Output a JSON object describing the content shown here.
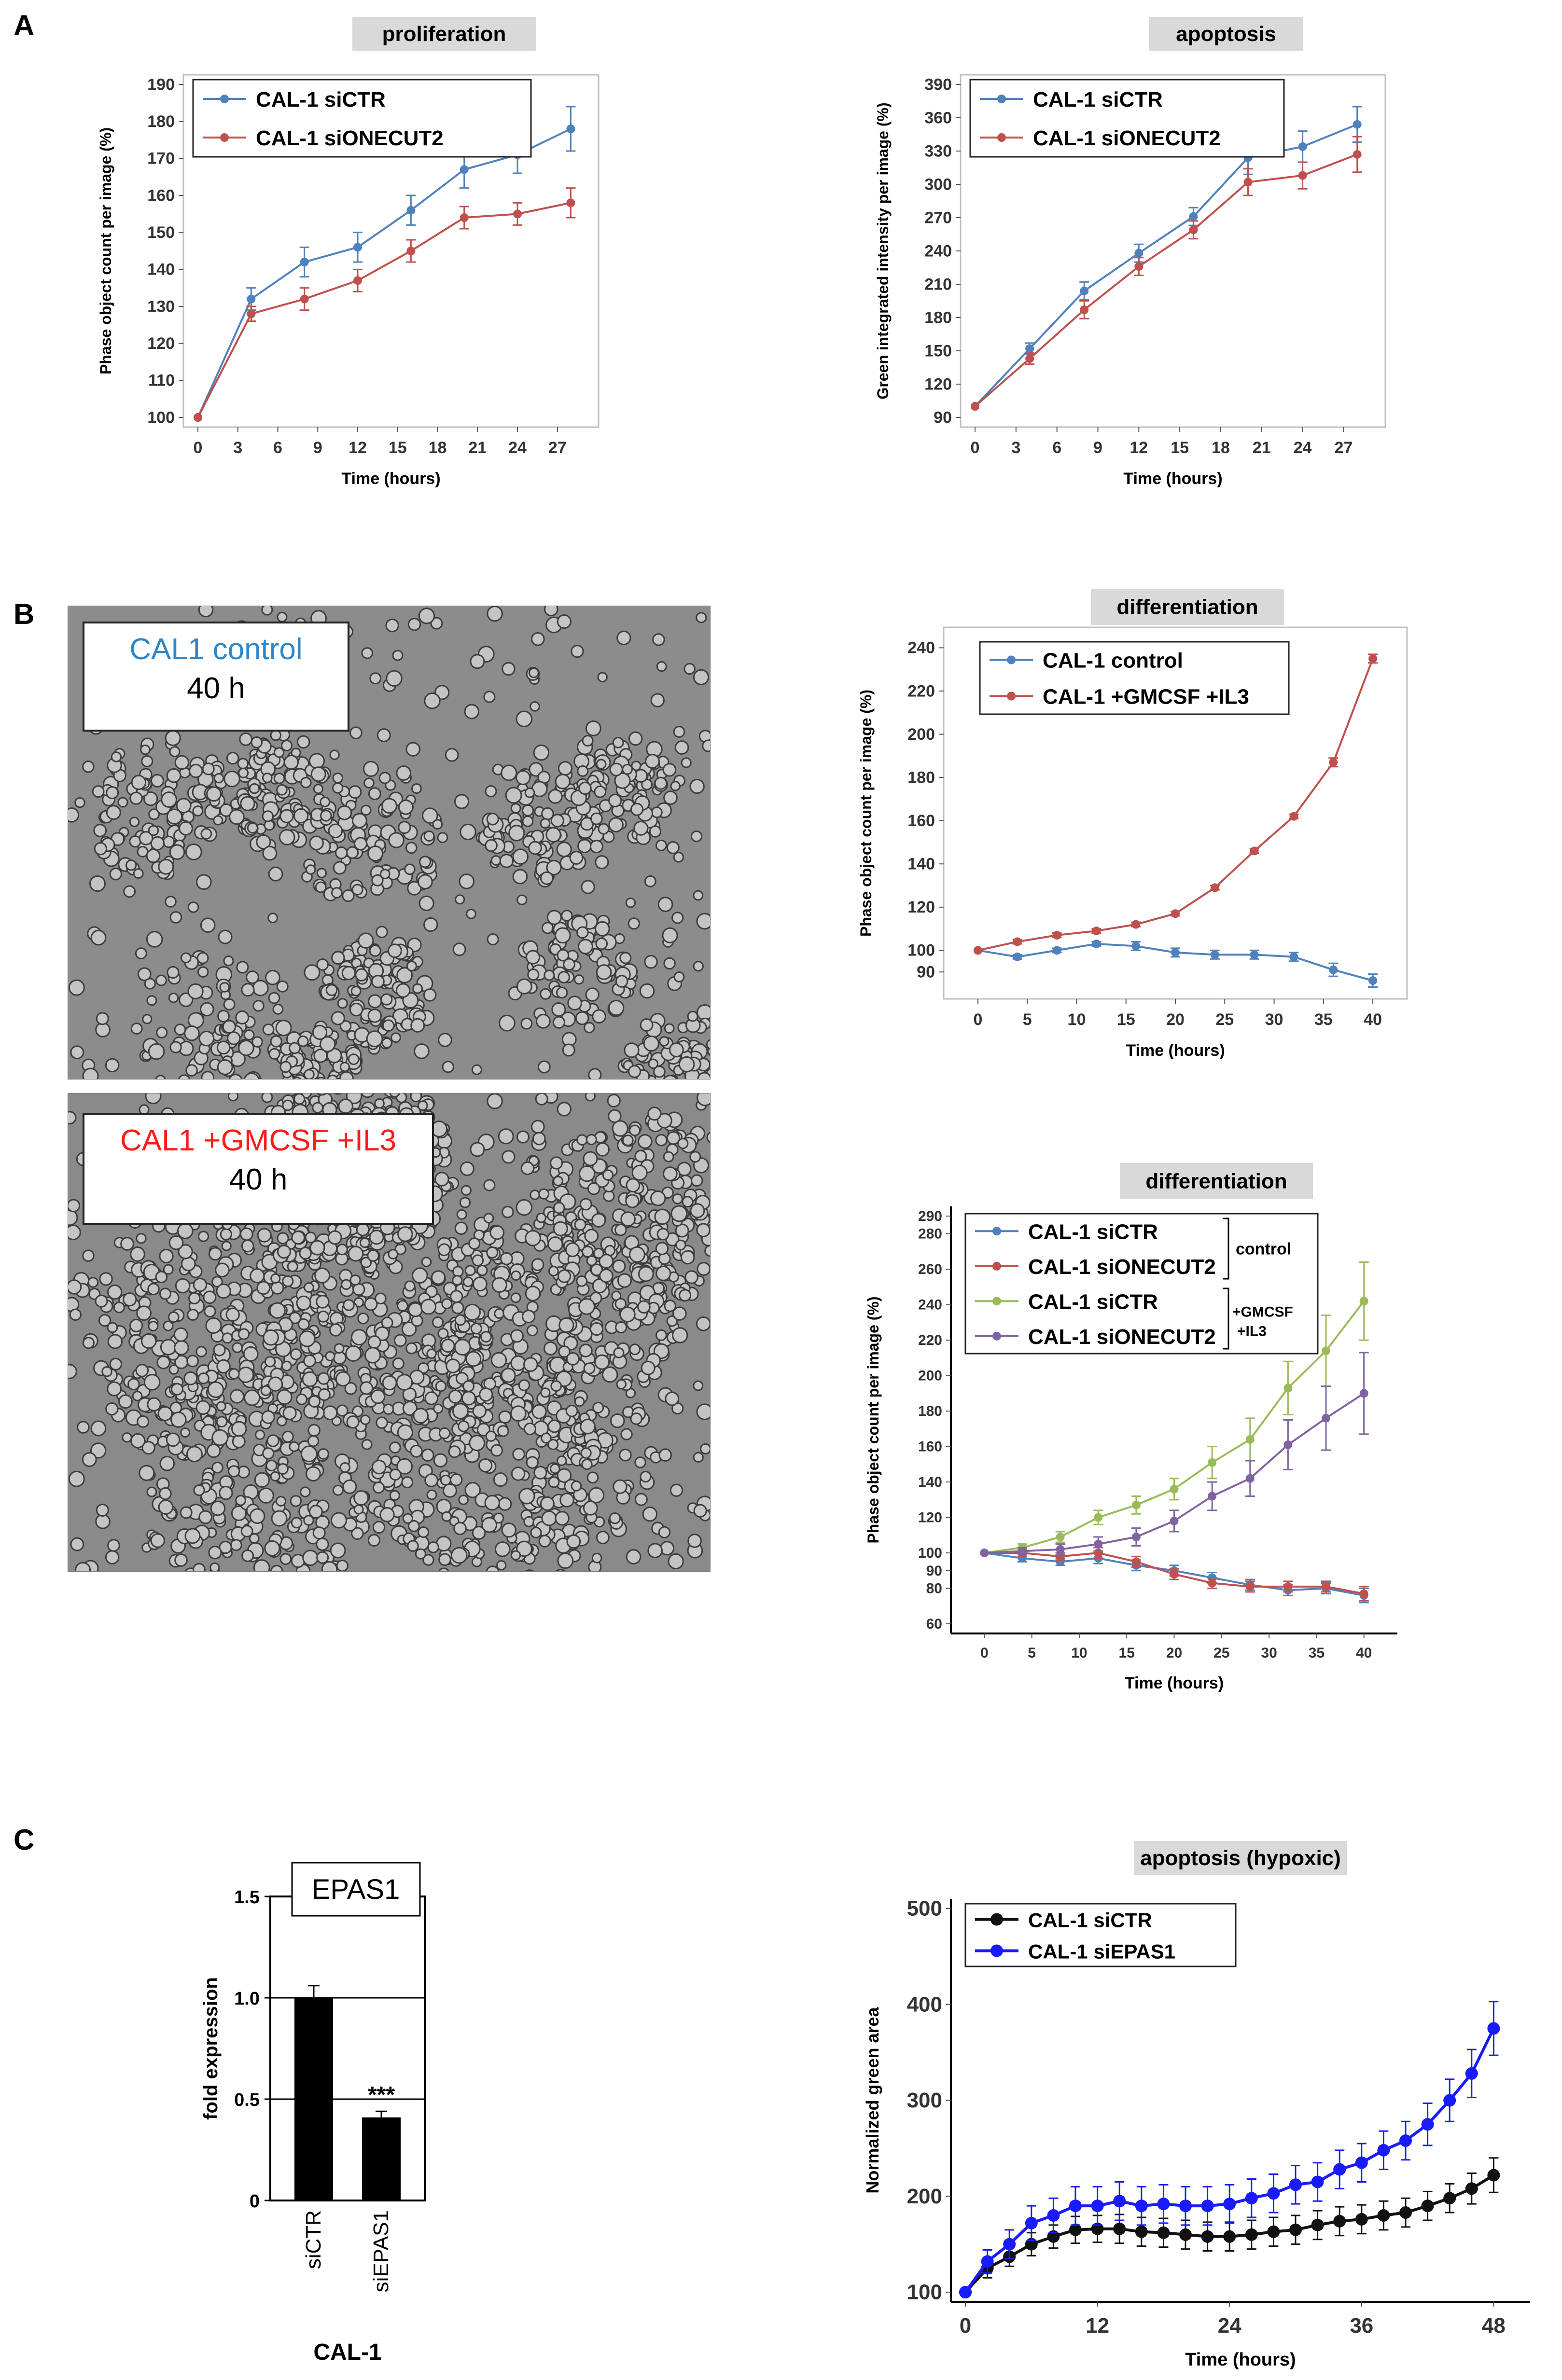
{
  "panels": {
    "a": "A",
    "b": "B",
    "c": "C"
  },
  "colors": {
    "blue": "#4f81bd",
    "red": "#c0504d",
    "green": "#9bbb59",
    "purple": "#8064a2",
    "black": "#111111",
    "pure_blue": "#1a1aff"
  },
  "micrographs": {
    "top": {
      "title": "CAL1 control",
      "subtitle": "40 h",
      "title_color": "#2e86c9"
    },
    "bottom": {
      "title": "CAL1 +GMCSF +IL3",
      "subtitle": "40 h",
      "title_color": "#ff1a1a"
    }
  },
  "chart_data": [
    {
      "id": "proliferation",
      "type": "line",
      "title": "proliferation",
      "xlabel": "Time (hours)",
      "ylabel": "Phase object count per image (%)",
      "xlim": [
        0,
        29
      ],
      "ylim": [
        100,
        190
      ],
      "xticks": [
        0,
        3,
        6,
        9,
        12,
        15,
        18,
        21,
        24,
        27
      ],
      "yticks": [
        100,
        110,
        120,
        130,
        140,
        150,
        160,
        170,
        180,
        190
      ],
      "series": [
        {
          "name": "CAL-1 siCTR",
          "color": "#4f81bd",
          "x": [
            0,
            4,
            8,
            12,
            16,
            20,
            24,
            28
          ],
          "y": [
            100,
            132,
            142,
            146,
            156,
            167,
            171,
            178
          ],
          "err": [
            0,
            3,
            4,
            4,
            4,
            5,
            5,
            6
          ]
        },
        {
          "name": "CAL-1 siONECUT2",
          "color": "#c0504d",
          "x": [
            0,
            4,
            8,
            12,
            16,
            20,
            24,
            28
          ],
          "y": [
            100,
            128,
            132,
            137,
            145,
            154,
            155,
            158
          ],
          "err": [
            0,
            2,
            3,
            3,
            3,
            3,
            3,
            4
          ]
        }
      ]
    },
    {
      "id": "apoptosis",
      "type": "line",
      "title": "apoptosis",
      "xlabel": "Time (hours)",
      "ylabel": "Green integrated intensity per image (%)",
      "xlim": [
        0,
        29
      ],
      "ylim": [
        90,
        390
      ],
      "xticks": [
        0,
        3,
        6,
        9,
        12,
        15,
        18,
        21,
        24,
        27
      ],
      "yticks": [
        90,
        120,
        150,
        180,
        210,
        240,
        270,
        300,
        330,
        360,
        390
      ],
      "series": [
        {
          "name": "CAL-1 siCTR",
          "color": "#4f81bd",
          "x": [
            0,
            4,
            8,
            12,
            16,
            20,
            24,
            28
          ],
          "y": [
            100,
            152,
            204,
            238,
            271,
            324,
            334,
            354
          ],
          "err": [
            0,
            5,
            8,
            8,
            8,
            15,
            14,
            16
          ]
        },
        {
          "name": "CAL-1 siONECUT2",
          "color": "#c0504d",
          "x": [
            0,
            4,
            8,
            12,
            16,
            20,
            24,
            28
          ],
          "y": [
            100,
            143,
            187,
            226,
            259,
            302,
            308,
            327
          ],
          "err": [
            0,
            5,
            8,
            8,
            8,
            12,
            12,
            16
          ]
        }
      ]
    },
    {
      "id": "differentiation1",
      "type": "line",
      "title": "differentiation",
      "xlabel": "Time (hours)",
      "ylabel": "Phase object count per image (%)",
      "xlim": [
        -2,
        42
      ],
      "ylim": [
        82,
        245
      ],
      "xticks": [
        0,
        5,
        10,
        15,
        20,
        25,
        30,
        35,
        40
      ],
      "yticks": [
        90,
        100,
        120,
        140,
        160,
        180,
        200,
        220,
        240
      ],
      "series": [
        {
          "name": "CAL-1  control",
          "color": "#4f81bd",
          "x": [
            0,
            4,
            8,
            12,
            16,
            20,
            24,
            28,
            32,
            36,
            40
          ],
          "y": [
            100,
            97,
            100,
            103,
            102,
            99,
            98,
            98,
            97,
            91,
            86
          ],
          "err": [
            0,
            1,
            1,
            1,
            2,
            2,
            2,
            2,
            2,
            3,
            3
          ]
        },
        {
          "name": "CAL-1  +GMCSF +IL3",
          "color": "#c0504d",
          "x": [
            0,
            4,
            8,
            12,
            16,
            20,
            24,
            28,
            32,
            36,
            40
          ],
          "y": [
            100,
            104,
            107,
            109,
            112,
            117,
            129,
            146,
            162,
            187,
            235
          ],
          "err": [
            0,
            1,
            1,
            1,
            1,
            1,
            1,
            1,
            1,
            2,
            2
          ]
        }
      ]
    },
    {
      "id": "differentiation2",
      "type": "line",
      "title": "differentiation",
      "xlabel": "Time (hours)",
      "ylabel": "Phase object count per image (%)",
      "xlim": [
        -2,
        42
      ],
      "ylim": [
        60,
        290
      ],
      "xticks": [
        0,
        5,
        10,
        15,
        20,
        25,
        30,
        35,
        40
      ],
      "yticks": [
        60,
        80,
        90,
        100,
        120,
        140,
        160,
        180,
        200,
        220,
        240,
        260,
        280,
        290
      ],
      "series": [
        {
          "name": "CAL-1 siCTR",
          "color": "#4f81bd",
          "x": [
            0,
            4,
            8,
            12,
            16,
            20,
            24,
            28,
            32,
            36,
            40
          ],
          "y": [
            100,
            97,
            95,
            97,
            93,
            90,
            86,
            82,
            79,
            80,
            76
          ],
          "err": [
            0,
            2,
            2,
            3,
            3,
            3,
            3,
            3,
            3,
            3,
            4
          ]
        },
        {
          "name": "CAL-1 siONECUT2",
          "color": "#c0504d",
          "x": [
            0,
            4,
            8,
            12,
            16,
            20,
            24,
            28,
            32,
            36,
            40
          ],
          "y": [
            100,
            100,
            98,
            100,
            95,
            88,
            83,
            81,
            81,
            81,
            77
          ],
          "err": [
            0,
            2,
            2,
            3,
            3,
            3,
            3,
            3,
            3,
            3,
            4
          ]
        },
        {
          "name": "CAL-1 siCTR",
          "color": "#9bbb59",
          "x": [
            0,
            4,
            8,
            12,
            16,
            20,
            24,
            28,
            32,
            36,
            40
          ],
          "y": [
            100,
            103,
            109,
            120,
            127,
            136,
            151,
            164,
            193,
            214,
            242
          ],
          "err": [
            0,
            2,
            3,
            4,
            5,
            6,
            9,
            12,
            15,
            20,
            22
          ]
        },
        {
          "name": "CAL-1 siONECUT2",
          "color": "#8064a2",
          "x": [
            0,
            4,
            8,
            12,
            16,
            20,
            24,
            28,
            32,
            36,
            40
          ],
          "y": [
            100,
            101,
            102,
            105,
            109,
            118,
            132,
            142,
            161,
            176,
            190
          ],
          "err": [
            0,
            2,
            3,
            4,
            5,
            6,
            8,
            10,
            14,
            18,
            23
          ]
        }
      ],
      "brackets": [
        "control",
        "+GMCSF",
        "+IL3"
      ]
    },
    {
      "id": "epas1",
      "type": "bar",
      "title": "EPAS1",
      "subtitle": "CAL-1",
      "xlabel": "",
      "ylabel": "fold expression",
      "categories": [
        "siCTR",
        "siEPAS1"
      ],
      "values": [
        1.0,
        0.41
      ],
      "err": [
        0.06,
        0.03
      ],
      "ylim": [
        0,
        1.5
      ],
      "yticks": [
        "0",
        "0.5",
        "1.0",
        "1.5"
      ],
      "significance": "***"
    },
    {
      "id": "apoptosis_hypoxic",
      "type": "line",
      "title": "apoptosis (hypoxic)",
      "xlabel": "Time (hours)",
      "ylabel": "Normalized green area",
      "xlim": [
        0,
        50
      ],
      "ylim": [
        100,
        500
      ],
      "xticks": [
        0,
        12,
        24,
        36,
        48
      ],
      "yticks": [
        100,
        200,
        300,
        400,
        500
      ],
      "series": [
        {
          "name": "CAL-1 siCTR",
          "color": "#111111",
          "x": [
            0,
            2,
            4,
            6,
            8,
            10,
            12,
            14,
            16,
            18,
            20,
            22,
            24,
            26,
            28,
            30,
            32,
            34,
            36,
            38,
            40,
            42,
            44,
            46,
            48
          ],
          "y": [
            100,
            125,
            137,
            150,
            158,
            165,
            166,
            166,
            163,
            162,
            160,
            158,
            158,
            160,
            163,
            165,
            170,
            174,
            176,
            180,
            183,
            190,
            198,
            208,
            222
          ],
          "err": [
            0,
            10,
            10,
            12,
            12,
            14,
            14,
            15,
            15,
            15,
            15,
            15,
            15,
            15,
            15,
            15,
            15,
            15,
            15,
            15,
            15,
            15,
            15,
            16,
            18
          ]
        },
        {
          "name": "CAL-1 siEPAS1",
          "color": "#1a1aff",
          "x": [
            0,
            2,
            4,
            6,
            8,
            10,
            12,
            14,
            16,
            18,
            20,
            22,
            24,
            26,
            28,
            30,
            32,
            34,
            36,
            38,
            40,
            42,
            44,
            46,
            48
          ],
          "y": [
            100,
            132,
            150,
            172,
            180,
            190,
            190,
            195,
            190,
            192,
            190,
            190,
            192,
            198,
            203,
            212,
            215,
            228,
            235,
            248,
            258,
            275,
            300,
            328,
            375
          ],
          "err": [
            0,
            12,
            15,
            18,
            18,
            20,
            20,
            20,
            20,
            20,
            20,
            20,
            20,
            20,
            20,
            20,
            20,
            20,
            20,
            20,
            20,
            22,
            22,
            25,
            28
          ]
        }
      ]
    }
  ]
}
